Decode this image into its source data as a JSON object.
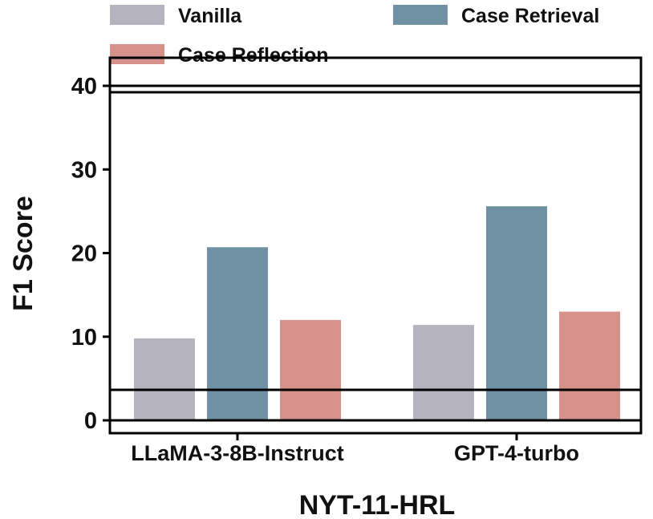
{
  "chart_data": {
    "type": "bar",
    "xlabel": "NYT-11-HRL",
    "ylabel": "F1 Score",
    "categories": [
      "LLaMA-3-8B-Instruct",
      "GPT-4-turbo"
    ],
    "series": [
      {
        "name": "Vanilla",
        "values": [
          9.8,
          11.4
        ],
        "color": "#b5b3bd"
      },
      {
        "name": "Case Retrieval",
        "values": [
          20.7,
          25.6
        ],
        "color": "#6f91a3"
      },
      {
        "name": "Case Reflection",
        "values": [
          12.0,
          13.0
        ],
        "color": "#d6918a"
      }
    ],
    "ylim": [
      0,
      40
    ],
    "yticks": [
      0,
      10,
      20,
      30,
      40
    ],
    "legend_position": "top",
    "grid": false
  }
}
